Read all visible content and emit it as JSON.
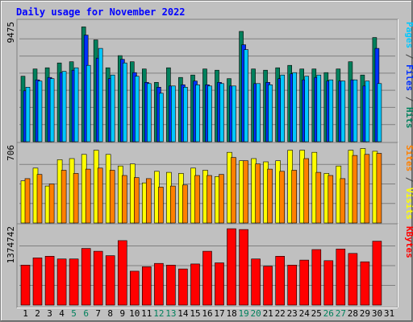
{
  "chart_data": {
    "type": "bar",
    "title": "Daily usage for November 2022",
    "categories": [
      "1",
      "2",
      "3",
      "4",
      "5",
      "6",
      "7",
      "8",
      "9",
      "10",
      "11",
      "12",
      "13",
      "14",
      "15",
      "16",
      "17",
      "18",
      "19",
      "20",
      "21",
      "22",
      "23",
      "24",
      "25",
      "26",
      "27",
      "28",
      "29",
      "30",
      "31"
    ],
    "weekend_days": [
      "5",
      "6",
      "12",
      "13",
      "19",
      "20",
      "26",
      "27"
    ],
    "panels": [
      {
        "id": "hits-files-pages",
        "max_label": "9475",
        "ymax": 9900,
        "side_labels": [
          {
            "text": "Pages",
            "color": "#00c8ff"
          },
          {
            "text": " / ",
            "color": "#404040"
          },
          {
            "text": "Files",
            "color": "#0030ff"
          },
          {
            "text": " / ",
            "color": "#404040"
          },
          {
            "text": "Hits",
            "color": "#00805c"
          }
        ],
        "series": [
          {
            "name": "Hits",
            "color": "#00805c",
            "values": [
              5400,
              6000,
              6100,
              6500,
              6600,
              9475,
              8400,
              6100,
              7100,
              6600,
              6000,
              4900,
              6100,
              5300,
              5500,
              6000,
              5900,
              5200,
              9100,
              6000,
              5900,
              6100,
              6300,
              6000,
              6000,
              5700,
              6000,
              6600,
              5500,
              8600,
              null
            ]
          },
          {
            "name": "Files",
            "color": "#0030ff",
            "values": [
              4200,
              5100,
              5300,
              5700,
              5900,
              8800,
              6900,
              5200,
              6800,
              5700,
              4900,
              4500,
              4600,
              4700,
              5000,
              4700,
              4900,
              4600,
              8000,
              4800,
              4900,
              5200,
              5600,
              5100,
              5300,
              5000,
              5000,
              5100,
              4600,
              7700,
              null
            ]
          },
          {
            "name": "Pages",
            "color": "#00c8ff",
            "values": [
              4500,
              5000,
              5200,
              5800,
              6100,
              6300,
              7700,
              5500,
              6500,
              5400,
              4800,
              4000,
              4600,
              4500,
              4700,
              4600,
              4800,
              4600,
              7600,
              4800,
              4700,
              5500,
              5700,
              5400,
              5500,
              5100,
              5000,
              5100,
              5000,
              4800,
              null
            ]
          }
        ]
      },
      {
        "id": "visits-sites",
        "max_label": "706",
        "ymax": 740,
        "side_labels": [
          {
            "text": "Sites",
            "color": "#ff8000"
          },
          {
            "text": " / ",
            "color": "#404040"
          },
          {
            "text": "Visits",
            "color": "#ffff00"
          }
        ],
        "series": [
          {
            "name": "Visits",
            "color": "#ffff00",
            "values": [
              400,
              520,
              350,
              600,
              610,
              650,
              690,
              650,
              540,
              560,
              380,
              490,
              480,
              470,
              520,
              500,
              440,
              670,
              590,
              610,
              580,
              590,
              690,
              690,
              670,
              470,
              540,
              690,
              706,
              680,
              null
            ]
          },
          {
            "name": "Sites",
            "color": "#ff8000",
            "values": [
              420,
              460,
              370,
              500,
              470,
              510,
              520,
              500,
              450,
              430,
              420,
              340,
              350,
              360,
              450,
              450,
              460,
              620,
              590,
              560,
              510,
              490,
              500,
              610,
              480,
              450,
              420,
              640,
              650,
              660,
              null
            ]
          }
        ]
      },
      {
        "id": "kbytes",
        "max_label": "1374742",
        "ymax": 1420000,
        "side_labels": [
          {
            "text": "KBytes",
            "color": "#ff0000"
          }
        ],
        "series": [
          {
            "name": "KBytes",
            "color": "#ff0000",
            "values": [
              720000,
              850000,
              880000,
              830000,
              830000,
              1020000,
              970000,
              890000,
              1160000,
              610000,
              690000,
              750000,
              720000,
              650000,
              740000,
              970000,
              760000,
              1374742,
              1360000,
              830000,
              700000,
              880000,
              720000,
              810000,
              1000000,
              800000,
              1010000,
              930000,
              780000,
              1150000,
              null
            ]
          }
        ]
      }
    ]
  }
}
